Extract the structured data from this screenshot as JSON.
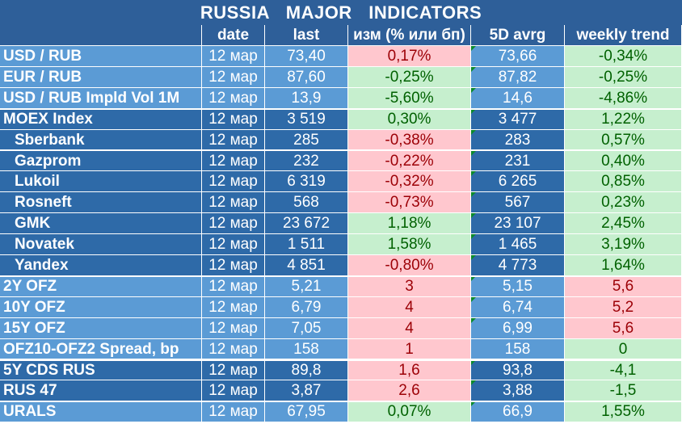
{
  "title": "RUSSIA   MAJOR   INDICATORS",
  "headers": [
    "",
    "date",
    "last",
    "изм (% или бп)",
    "5D avrg",
    "weekly trend"
  ],
  "rows": [
    {
      "name": "USD / RUB",
      "date": "12 мар",
      "last": "73,40",
      "chg": "0,17%",
      "avg": "73,66",
      "trend": "-0,34%"
    },
    {
      "name": "EUR / RUB",
      "date": "12 мар",
      "last": "87,60",
      "chg": "-0,25%",
      "avg": "87,82",
      "trend": "-0,25%"
    },
    {
      "name": "USD / RUB Impld Vol 1M",
      "date": "12 мар",
      "last": "13,9",
      "chg": "-5,60%",
      "avg": "14,6",
      "trend": "-4,86%"
    },
    {
      "name": "MOEX Index",
      "date": "12 мар",
      "last": "3 519",
      "chg": "0,30%",
      "avg": "3 477",
      "trend": "1,22%"
    },
    {
      "name": "Sberbank",
      "date": "12 мар",
      "last": "285",
      "chg": "-0,38%",
      "avg": "283",
      "trend": "0,57%"
    },
    {
      "name": "Gazprom",
      "date": "12 мар",
      "last": "232",
      "chg": "-0,22%",
      "avg": "231",
      "trend": "0,40%"
    },
    {
      "name": "Lukoil",
      "date": "12 мар",
      "last": "6 319",
      "chg": "-0,32%",
      "avg": "6 265",
      "trend": "0,85%"
    },
    {
      "name": "Rosneft",
      "date": "12 мар",
      "last": "568",
      "chg": "-0,73%",
      "avg": "567",
      "trend": "0,23%"
    },
    {
      "name": "GMK",
      "date": "12 мар",
      "last": "23 672",
      "chg": "1,18%",
      "avg": "23 107",
      "trend": "2,45%"
    },
    {
      "name": "Novatek",
      "date": "12 мар",
      "last": "1 511",
      "chg": "1,58%",
      "avg": "1 465",
      "trend": "3,19%"
    },
    {
      "name": "Yandex",
      "date": "12 мар",
      "last": "4 851",
      "chg": "-0,80%",
      "avg": "4 773",
      "trend": "1,64%"
    },
    {
      "name": "2Y OFZ",
      "date": "12 мар",
      "last": "5,21",
      "chg": "3",
      "avg": "5,15",
      "trend": "5,6"
    },
    {
      "name": "10Y OFZ",
      "date": "12 мар",
      "last": "6,79",
      "chg": "4",
      "avg": "6,74",
      "trend": "5,2"
    },
    {
      "name": "15Y OFZ",
      "date": "12 мар",
      "last": "7,05",
      "chg": "4",
      "avg": "6,99",
      "trend": "5,6"
    },
    {
      "name": "OFZ10-OFZ2 Spread, bp",
      "date": "12 мар",
      "last": "158",
      "chg": "1",
      "avg": "158",
      "trend": "0"
    },
    {
      "name": "5Y CDS RUS",
      "date": "12 мар",
      "last": "89,8",
      "chg": "1,6",
      "avg": "93,8",
      "trend": "-4,1"
    },
    {
      "name": "RUS 47",
      "date": "12 мар",
      "last": "3,87",
      "chg": "2,6",
      "avg": "3,88",
      "trend": "-1,5"
    },
    {
      "name": "URALS",
      "date": "12 мар",
      "last": "67,95",
      "chg": "0,07%",
      "avg": "66,9",
      "trend": "1,55%"
    }
  ]
}
